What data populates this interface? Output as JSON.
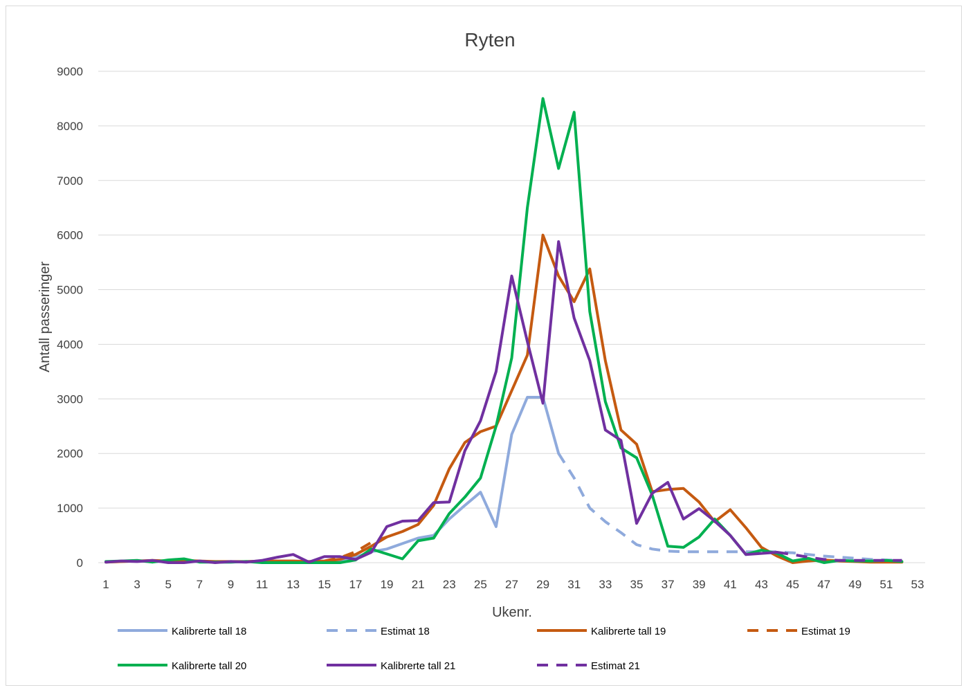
{
  "chart_data": {
    "type": "line",
    "title": "Ryten",
    "xlabel": "Ukenr.",
    "ylabel": "Antall passeringer",
    "xlim": [
      1,
      53
    ],
    "ylim": [
      0,
      9000
    ],
    "x_ticks": [
      1,
      3,
      5,
      7,
      9,
      11,
      13,
      15,
      17,
      19,
      21,
      23,
      25,
      27,
      29,
      31,
      33,
      35,
      37,
      39,
      41,
      43,
      45,
      47,
      49,
      51,
      53
    ],
    "y_ticks": [
      0,
      1000,
      2000,
      3000,
      4000,
      5000,
      6000,
      7000,
      8000,
      9000
    ],
    "grid": true,
    "legend_position": "bottom",
    "series": [
      {
        "name": "Kalibrerte tall 18",
        "color": "#8faadc",
        "dash": "solid",
        "x": [
          1,
          2,
          3,
          4,
          5,
          6,
          7,
          8,
          9,
          10,
          11,
          12,
          13,
          14,
          15,
          16,
          17,
          18,
          19,
          20,
          21,
          22,
          23,
          24,
          25,
          26,
          27,
          28,
          29,
          30
        ],
        "values": [
          10,
          20,
          30,
          20,
          20,
          30,
          20,
          10,
          10,
          20,
          20,
          30,
          30,
          20,
          30,
          50,
          100,
          200,
          250,
          350,
          450,
          500,
          800,
          1050,
          1290,
          660,
          2350,
          3030,
          3030,
          2000
        ]
      },
      {
        "name": "Estimat 18",
        "color": "#8faadc",
        "dash": "dashed",
        "x": [
          30,
          31,
          32,
          33,
          34,
          35,
          36,
          37,
          38,
          39,
          40,
          41,
          42,
          43,
          44,
          45,
          46,
          47,
          48,
          49,
          50,
          51,
          52
        ],
        "values": [
          2000,
          1550,
          1000,
          750,
          550,
          330,
          250,
          210,
          200,
          200,
          200,
          200,
          200,
          200,
          200,
          180,
          150,
          120,
          100,
          80,
          60,
          50,
          40
        ]
      },
      {
        "name": "Kalibrerte tall 19",
        "color": "#c55a11",
        "dash": "solid",
        "x": [
          1,
          2,
          3,
          4,
          5,
          6,
          7,
          8,
          9,
          10,
          11,
          12,
          13,
          14,
          15,
          16,
          17,
          18,
          19,
          20,
          21,
          22,
          23,
          24,
          25,
          26,
          27,
          28,
          29,
          30,
          31,
          32,
          33,
          34,
          35,
          36,
          37,
          38,
          39,
          40,
          41,
          42,
          43,
          44,
          45,
          46,
          47,
          48,
          49,
          50,
          51,
          52
        ],
        "values": [
          10,
          20,
          30,
          40,
          30,
          40,
          30,
          20,
          20,
          20,
          30,
          30,
          30,
          20,
          30,
          60,
          150,
          300,
          470,
          570,
          700,
          1050,
          1720,
          2200,
          2400,
          2500,
          3150,
          3800,
          6000,
          5250,
          4780,
          5380,
          3700,
          2430,
          2170,
          1300,
          1340,
          1360,
          1110,
          750,
          970,
          640,
          280,
          120,
          0,
          30,
          50,
          30,
          20,
          10,
          10,
          10
        ]
      },
      {
        "name": "Estimat 19",
        "color": "#c55a11",
        "dash": "dashed",
        "x": [
          15,
          16,
          17,
          18,
          19
        ],
        "values": [
          30,
          90,
          200,
          370,
          470
        ]
      },
      {
        "name": "Kalibrerte tall 20",
        "color": "#00b050",
        "dash": "solid",
        "x": [
          1,
          2,
          3,
          4,
          5,
          6,
          7,
          8,
          9,
          10,
          11,
          12,
          13,
          14,
          15,
          16,
          17,
          18,
          19,
          20,
          21,
          22,
          23,
          24,
          25,
          26,
          27,
          28,
          29,
          30,
          31,
          32,
          33,
          34,
          35,
          36,
          37,
          38,
          39,
          40,
          41,
          42,
          43,
          44,
          45,
          46,
          47,
          48,
          49,
          50,
          51,
          52
        ],
        "values": [
          20,
          30,
          40,
          10,
          50,
          70,
          10,
          10,
          10,
          20,
          0,
          0,
          0,
          0,
          0,
          0,
          50,
          250,
          160,
          70,
          400,
          450,
          900,
          1200,
          1550,
          2500,
          3750,
          6500,
          8500,
          7220,
          8250,
          4600,
          2950,
          2100,
          1920,
          1240,
          300,
          280,
          470,
          800,
          500,
          150,
          230,
          170,
          30,
          80,
          0,
          40,
          30,
          30,
          40,
          20
        ]
      },
      {
        "name": "Kalibrerte tall 21",
        "color": "#7030a0",
        "dash": "solid",
        "x": [
          1,
          2,
          3,
          4,
          5,
          6,
          7,
          8,
          9,
          10,
          11,
          12,
          13,
          14,
          15,
          16,
          17,
          18,
          19,
          20,
          21,
          22,
          23,
          24,
          25,
          26,
          27,
          28,
          29,
          30,
          31,
          32,
          33,
          34,
          35,
          36,
          37,
          38,
          39,
          40,
          41,
          42,
          43,
          44
        ],
        "values": [
          10,
          30,
          20,
          40,
          0,
          0,
          30,
          0,
          20,
          10,
          40,
          100,
          150,
          10,
          110,
          110,
          60,
          190,
          660,
          760,
          770,
          1100,
          1110,
          2050,
          2600,
          3500,
          5250,
          4050,
          2920,
          5880,
          4480,
          3700,
          2430,
          2240,
          720,
          1270,
          1470,
          800,
          990,
          760,
          500,
          150,
          170,
          190
        ]
      },
      {
        "name": "Estimat 21",
        "color": "#7030a0",
        "dash": "dashed",
        "x": [
          44,
          45,
          46,
          47,
          48,
          49,
          50,
          51,
          52
        ],
        "values": [
          190,
          150,
          100,
          60,
          40,
          40,
          40,
          40,
          40
        ]
      }
    ]
  }
}
